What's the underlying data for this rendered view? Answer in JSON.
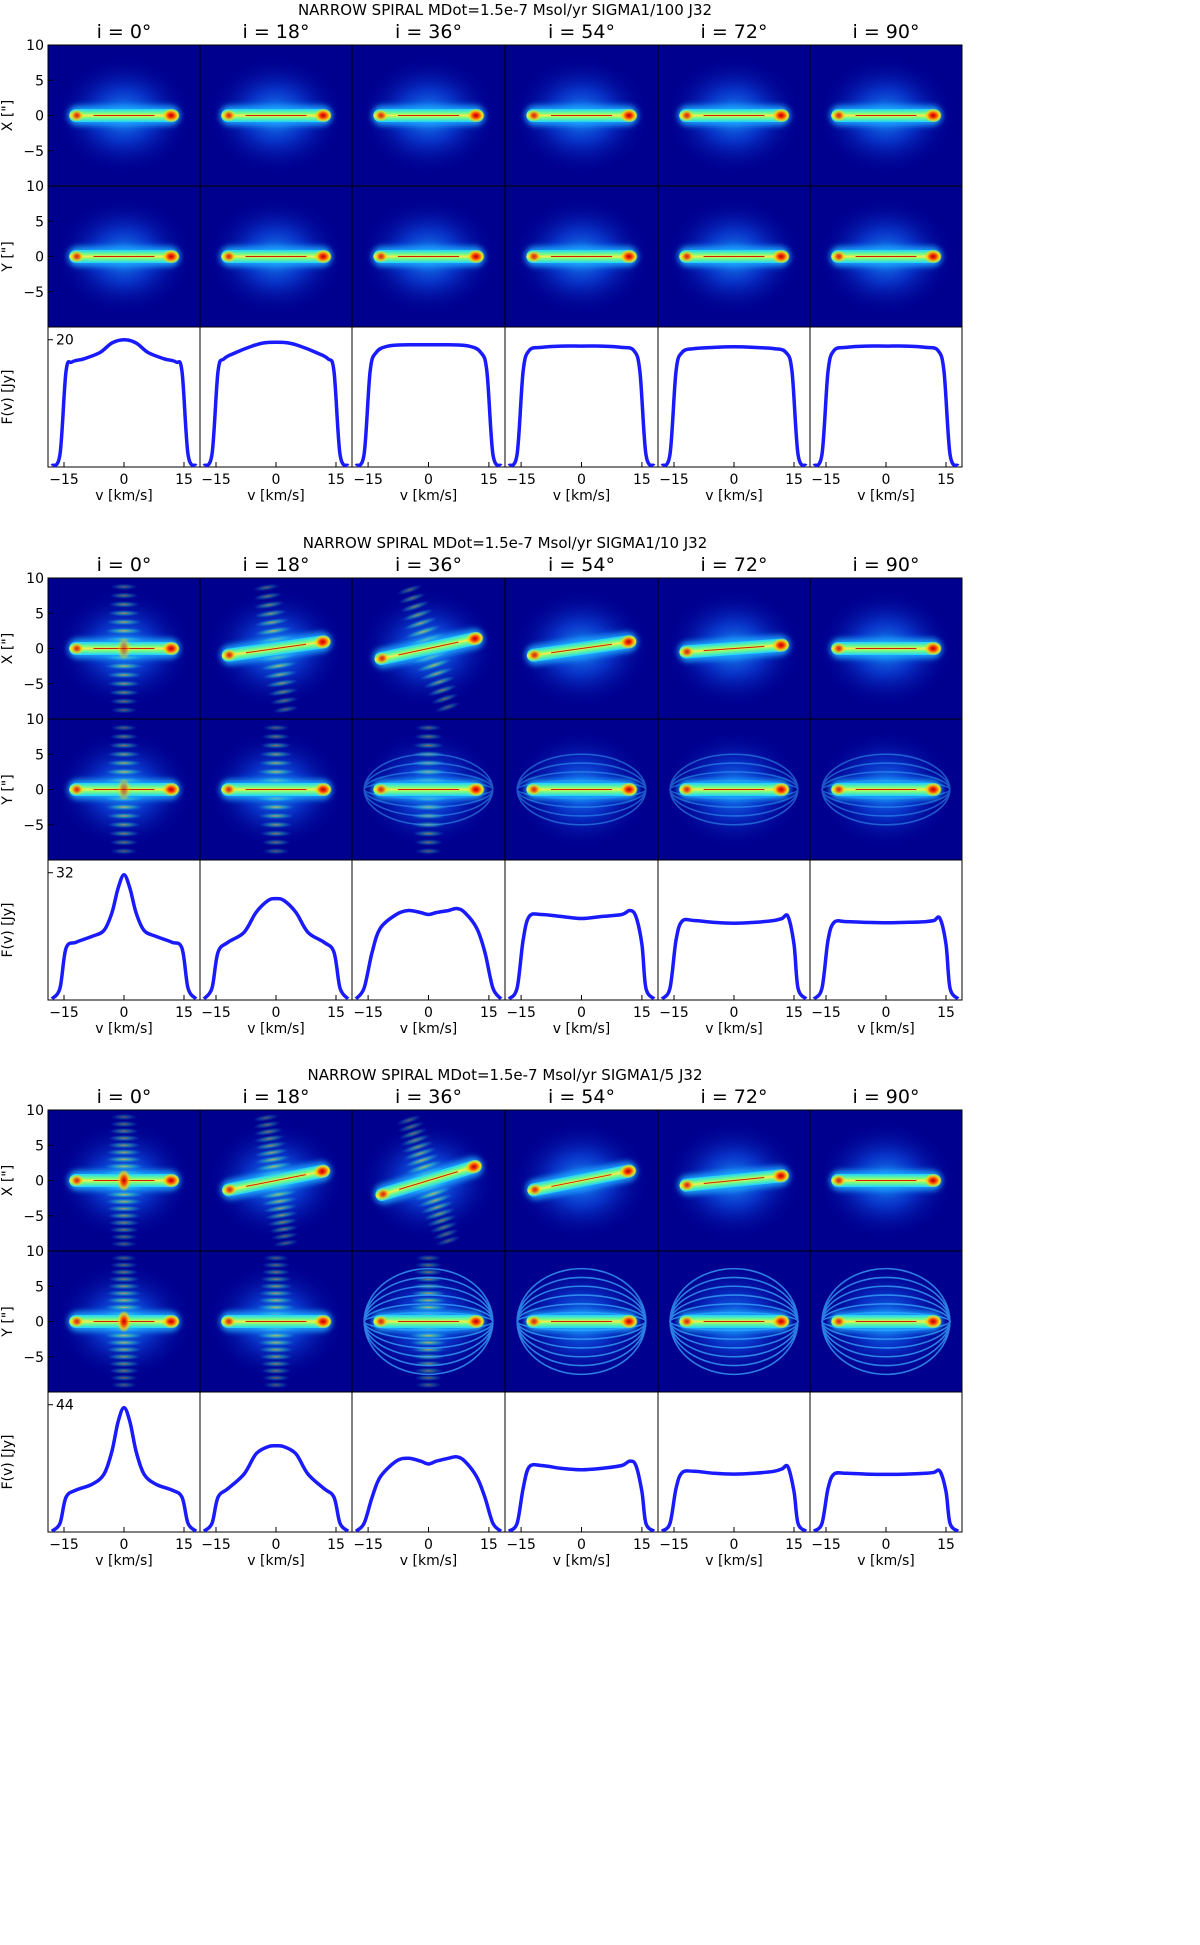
{
  "chart_data": {
    "type": "figure-grid",
    "ticks": {
      "map_y": [
        "10",
        "5",
        "0",
        "−5"
      ],
      "velocity_x": [
        "−15",
        "0",
        "15"
      ]
    },
    "labels": {
      "map_x_ylabel": "X [\"]",
      "map_y_ylabel": "Y [\"]",
      "spectrum_ylabel": "F(v) [Jy]",
      "spectrum_xlabel": "v [km/s]"
    },
    "inclinations": [
      "i = 0°",
      "i = 18°",
      "i = 36°",
      "i = 54°",
      "i = 72°",
      "i = 90°"
    ],
    "inclination_values": [
      0,
      18,
      36,
      54,
      72,
      90
    ],
    "colors": {
      "spectrum_line": "#1a1aff",
      "map_background": "#00008f"
    },
    "blocks": [
      {
        "title": "NARROW SPIRAL     MDot=1.5e-7 Msol/yr     SIGMA1/100      J32",
        "peak_tick": "20",
        "spectra": [
          {
            "v": [
              -18,
              -16,
              -14.5,
              -13,
              -10,
              -6,
              -3,
              0,
              3,
              6,
              10,
              13,
              14.5,
              16,
              18
            ],
            "f": [
              0.2,
              2,
              15,
              16.5,
              17,
              18,
              19.5,
              20,
              19.5,
              18,
              17,
              16.5,
              15,
              2,
              0.2
            ]
          },
          {
            "v": [
              -18,
              -16,
              -14.5,
              -13,
              -10,
              -6,
              -3,
              0,
              3,
              6,
              10,
              13,
              14.5,
              16,
              18
            ],
            "f": [
              0.2,
              2,
              15,
              17,
              18,
              19,
              19.5,
              19.6,
              19.5,
              19,
              18,
              17,
              15,
              2,
              0.2
            ]
          },
          {
            "v": [
              -18,
              -16,
              -14.5,
              -13,
              -10,
              -5,
              0,
              5,
              10,
              13,
              14.5,
              16,
              18
            ],
            "f": [
              0.2,
              2,
              15,
              18,
              19,
              19.2,
              19.2,
              19.2,
              19,
              18,
              15,
              2,
              0.2
            ]
          },
          {
            "v": [
              -18,
              -16,
              -14.5,
              -13,
              -10,
              -5,
              0,
              5,
              10,
              13,
              14.5,
              16,
              18
            ],
            "f": [
              0.2,
              2,
              15,
              18.3,
              18.8,
              19,
              19,
              19,
              18.8,
              18.3,
              15,
              2,
              0.2
            ]
          },
          {
            "v": [
              -18,
              -16,
              -14.5,
              -13,
              -10,
              -5,
              0,
              5,
              10,
              13,
              14.5,
              16,
              18
            ],
            "f": [
              0.2,
              2,
              15,
              18,
              18.6,
              18.8,
              18.9,
              18.8,
              18.6,
              18,
              15,
              2,
              0.2
            ]
          },
          {
            "v": [
              -18,
              -16,
              -14.5,
              -13,
              -10,
              -5,
              0,
              5,
              10,
              13,
              14.5,
              16,
              18
            ],
            "f": [
              0.2,
              2,
              15,
              18.3,
              18.8,
              19,
              19,
              19,
              18.8,
              18.3,
              15,
              2,
              0.2
            ]
          }
        ]
      },
      {
        "title": "NARROW SPIRAL     MDot=1.5e-7 Msol/yr     SIGMA1/10      J32",
        "peak_tick": "32",
        "spectra": [
          {
            "v": [
              -18,
              -16,
              -14.5,
              -12,
              -8,
              -5,
              -3,
              -1.5,
              0,
              1.5,
              3,
              5,
              8,
              12,
              14.5,
              16,
              18
            ],
            "f": [
              0.3,
              3,
              13,
              14.5,
              16,
              17.5,
              22,
              28,
              31.5,
              28,
              22,
              17.5,
              16,
              14.5,
              13,
              3,
              0.3
            ]
          },
          {
            "v": [
              -18,
              -16,
              -14.5,
              -12,
              -8,
              -5,
              -2,
              0,
              2,
              5,
              8,
              12,
              14.5,
              16,
              18
            ],
            "f": [
              0.3,
              3,
              12,
              14.5,
              17,
              22,
              25,
              25.5,
              25,
              22,
              17,
              14.5,
              12,
              3,
              0.3
            ]
          },
          {
            "v": [
              -18,
              -16,
              -14,
              -12,
              -8,
              -5,
              -2,
              0,
              2,
              5,
              7,
              9,
              12,
              14,
              16,
              18
            ],
            "f": [
              0.3,
              3,
              12,
              18,
              21.5,
              22.5,
              22,
              21.5,
              22,
              22.5,
              23,
              22,
              18,
              12,
              3,
              0.3
            ]
          },
          {
            "v": [
              -18,
              -16,
              -14.5,
              -13,
              -10,
              -5,
              0,
              5,
              10,
              12,
              13.5,
              15,
              16,
              18
            ],
            "f": [
              0.3,
              3,
              15,
              21,
              21.5,
              21,
              20.5,
              21,
              21.5,
              22.5,
              21,
              14,
              3,
              0.3
            ]
          },
          {
            "v": [
              -18,
              -16,
              -14.5,
              -13,
              -10,
              -5,
              0,
              5,
              10,
              12,
              13.5,
              15,
              16,
              18
            ],
            "f": [
              0.3,
              3,
              15,
              19.8,
              20,
              19.5,
              19.3,
              19.5,
              20,
              20.5,
              21,
              14,
              3,
              0.3
            ]
          },
          {
            "v": [
              -18,
              -16,
              -14.5,
              -13,
              -10,
              -5,
              0,
              5,
              10,
              12,
              13.5,
              15,
              16,
              18
            ],
            "f": [
              0.3,
              3,
              15,
              19.5,
              19.7,
              19.5,
              19.4,
              19.5,
              19.7,
              20,
              20.5,
              14,
              3,
              0.3
            ]
          }
        ]
      },
      {
        "title": "NARROW SPIRAL     MDot=1.5e-7 Msol/yr     SIGMA1/5      J32",
        "peak_tick": "44",
        "spectra": [
          {
            "v": [
              -18,
              -16,
              -14.5,
              -12,
              -8,
              -5,
              -3,
              -1.5,
              0,
              1.5,
              3,
              5,
              8,
              12,
              14.5,
              16,
              18
            ],
            "f": [
              0.3,
              3,
              12,
              14.5,
              16.5,
              20,
              28,
              38,
              43,
              38,
              28,
              20,
              16.5,
              14.5,
              12,
              3,
              0.3
            ]
          },
          {
            "v": [
              -18,
              -16,
              -14.5,
              -12,
              -8,
              -5,
              -2,
              0,
              2,
              5,
              8,
              12,
              14.5,
              16,
              18
            ],
            "f": [
              0.3,
              3,
              12,
              15,
              20,
              27,
              29.5,
              29.8,
              29.5,
              27,
              20,
              15,
              12,
              3,
              0.3
            ]
          },
          {
            "v": [
              -18,
              -16,
              -14,
              -12,
              -8,
              -5,
              -2,
              0,
              2,
              5,
              7,
              9,
              12,
              14,
              16,
              18
            ],
            "f": [
              0.3,
              3,
              12,
              19,
              24.5,
              25.5,
              24.5,
              23.5,
              24.5,
              25.5,
              26,
              24.5,
              19,
              12,
              3,
              0.3
            ]
          },
          {
            "v": [
              -18,
              -16,
              -14.5,
              -13,
              -10,
              -5,
              0,
              5,
              10,
              12,
              13.5,
              15,
              16,
              18
            ],
            "f": [
              0.3,
              3,
              15,
              22.5,
              23,
              22,
              21.5,
              22,
              23,
              24.5,
              23,
              14,
              3,
              0.3
            ]
          },
          {
            "v": [
              -18,
              -16,
              -14.5,
              -13,
              -10,
              -5,
              0,
              5,
              10,
              12,
              13.5,
              15,
              16,
              18
            ],
            "f": [
              0.3,
              3,
              15,
              20.5,
              21,
              20.3,
              20,
              20.3,
              21,
              21.8,
              22.5,
              14,
              3,
              0.3
            ]
          },
          {
            "v": [
              -18,
              -16,
              -14.5,
              -13,
              -10,
              -5,
              0,
              5,
              10,
              12,
              13.5,
              15,
              16,
              18
            ],
            "f": [
              0.3,
              3,
              15,
              20,
              20.3,
              20,
              19.9,
              20,
              20.3,
              20.6,
              21,
              14,
              3,
              0.3
            ]
          }
        ]
      }
    ]
  }
}
